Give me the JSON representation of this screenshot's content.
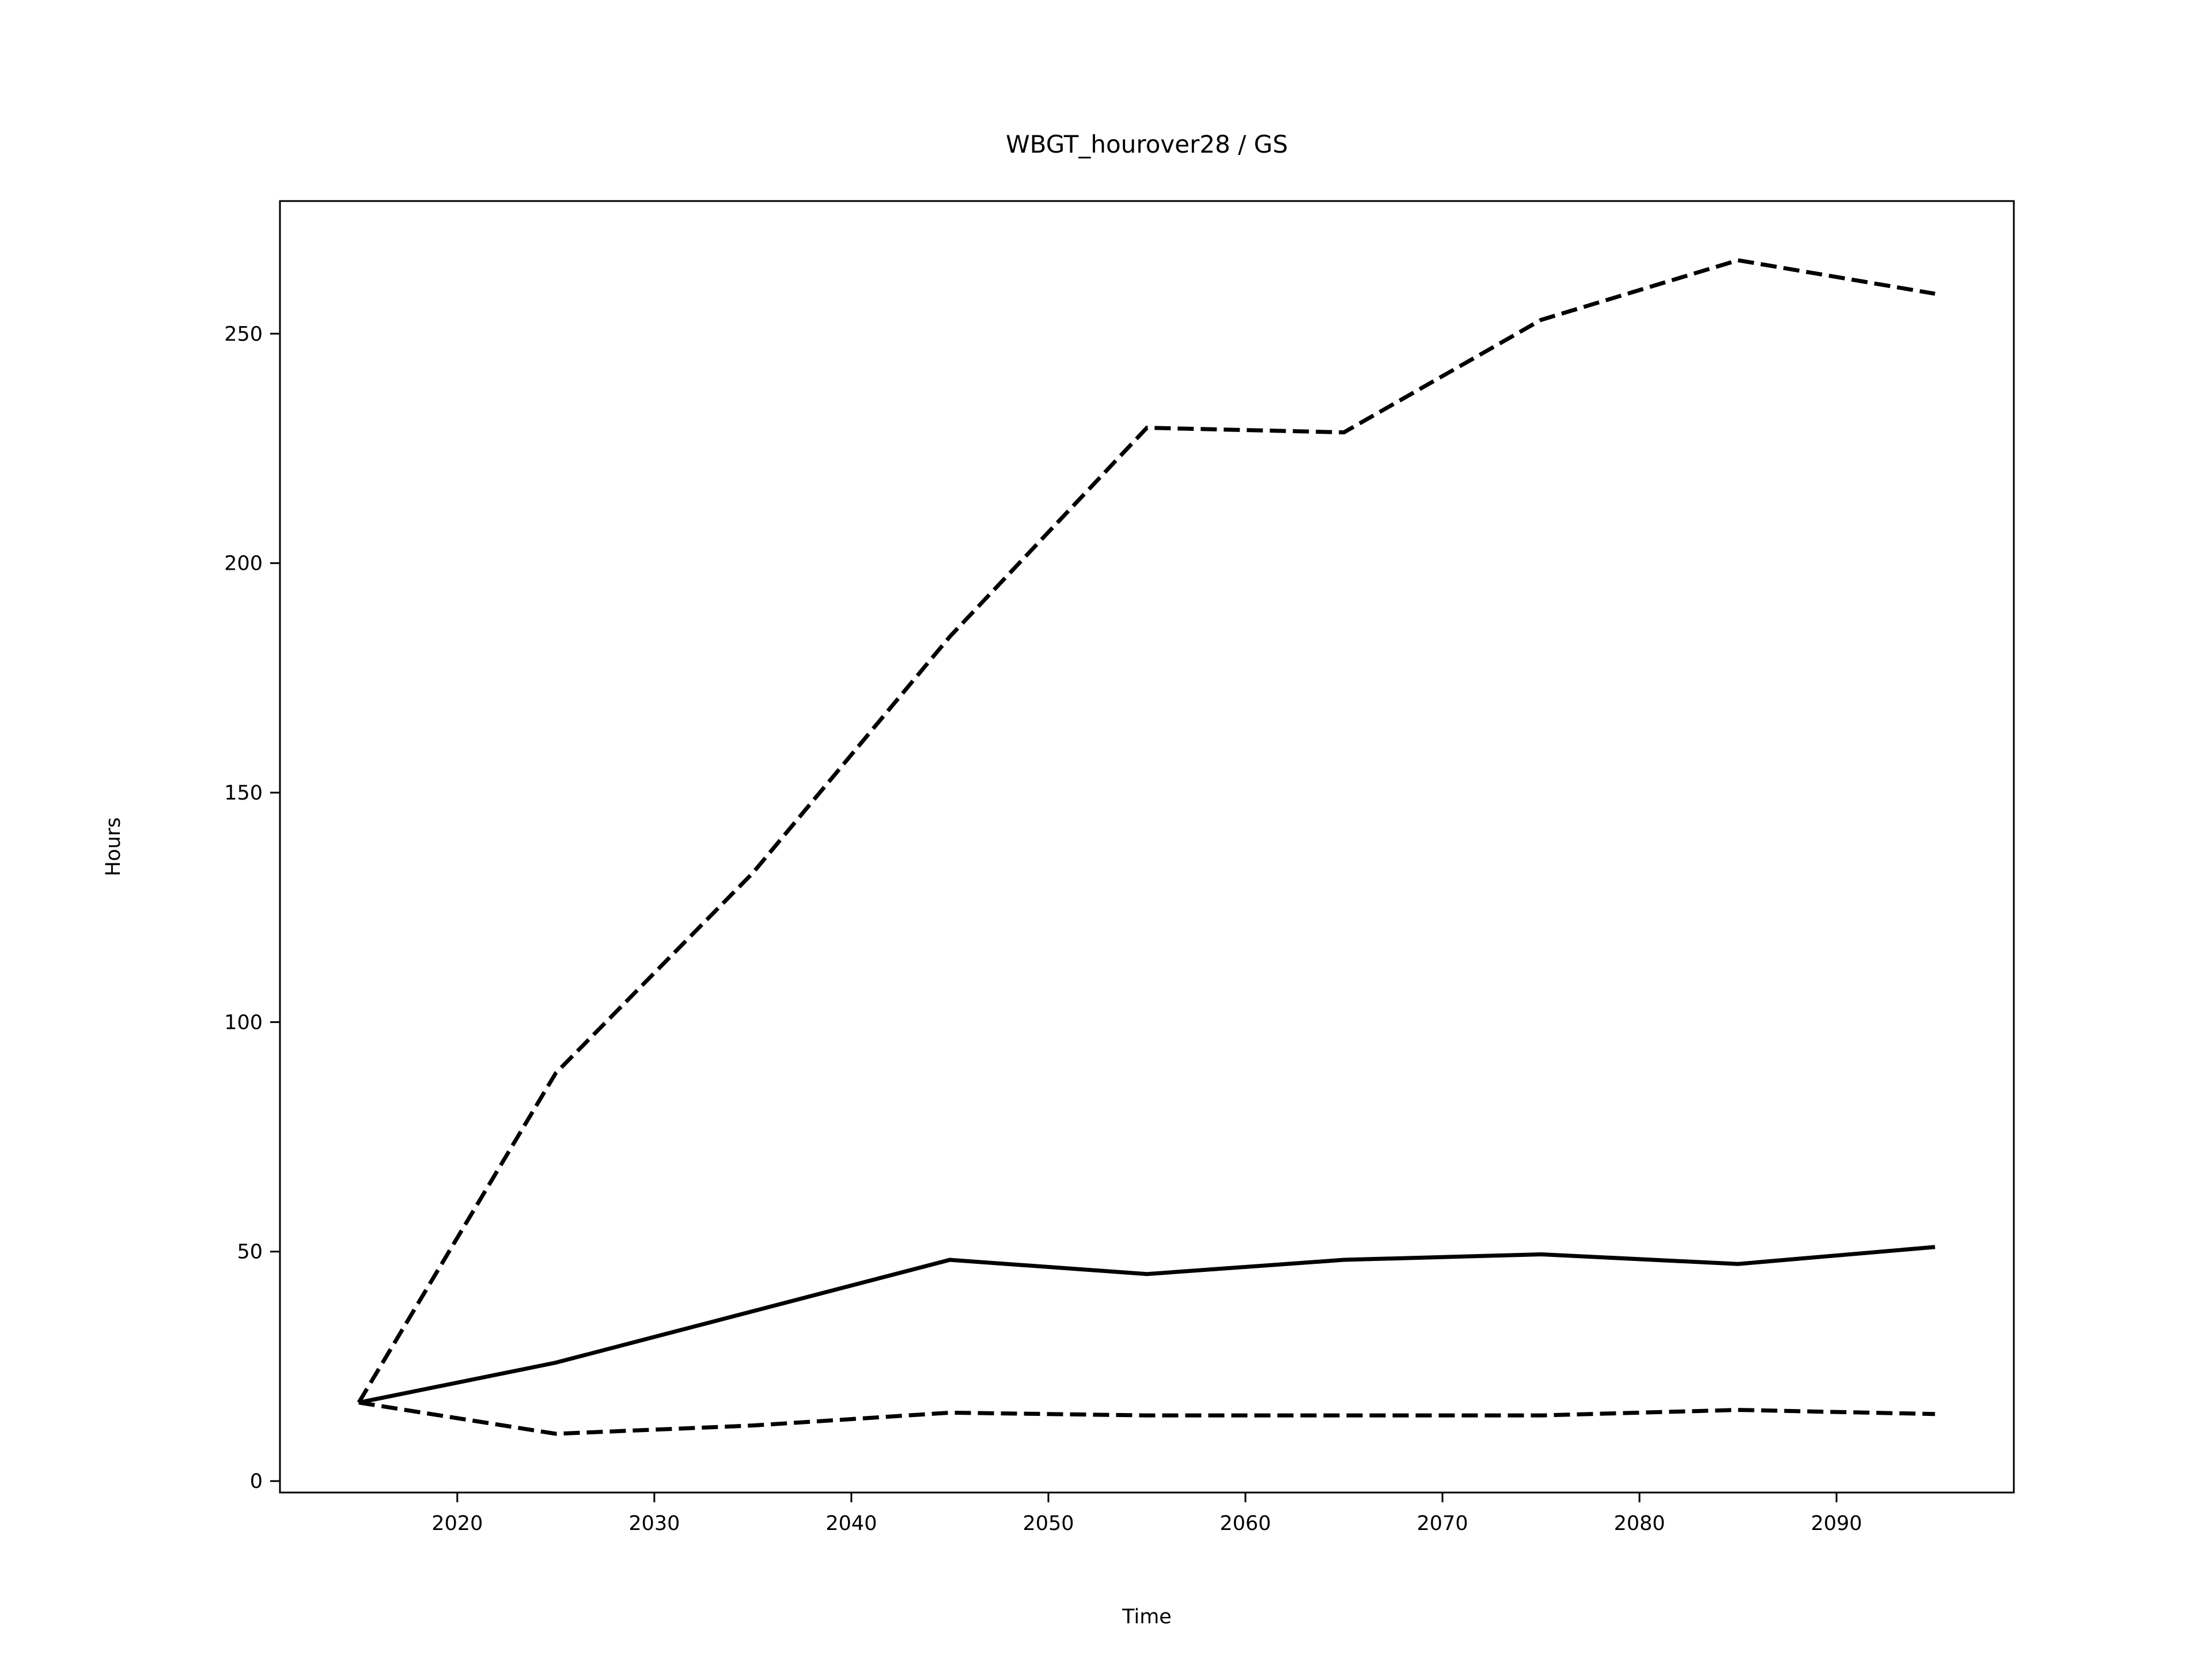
{
  "chart_data": {
    "type": "line",
    "title": "WBGT_hourover28 / GS",
    "x_label": "Time",
    "y_label": "Hours",
    "x": [
      2015,
      2025,
      2035,
      2045,
      2055,
      2065,
      2075,
      2085,
      2095
    ],
    "series": [
      {
        "color": "#000000",
        "linestyle": "solid",
        "values": [
          17.1,
          25.8,
          37,
          48.2,
          45.1,
          48.2,
          49.4,
          47.3,
          51
        ]
      },
      {
        "color": "#000000",
        "linestyle": "dashed",
        "values": [
          17.1,
          88.9,
          132.5,
          184,
          229.5,
          228.5,
          253,
          266,
          258.7
        ]
      },
      {
        "color": "#000000",
        "linestyle": "dashed",
        "values": [
          17.1,
          10.3,
          12.1,
          14.9,
          14.3,
          14.3,
          14.3,
          15.5,
          14.6
        ]
      }
    ],
    "xlim": [
      2011,
      2099
    ],
    "xticks": [
      2020,
      2030,
      2040,
      2050,
      2060,
      2070,
      2080,
      2090
    ],
    "ylim": [
      -2.5,
      278.9
    ],
    "yticks": [
      0,
      50,
      100,
      150,
      200,
      250
    ],
    "grid": false
  }
}
